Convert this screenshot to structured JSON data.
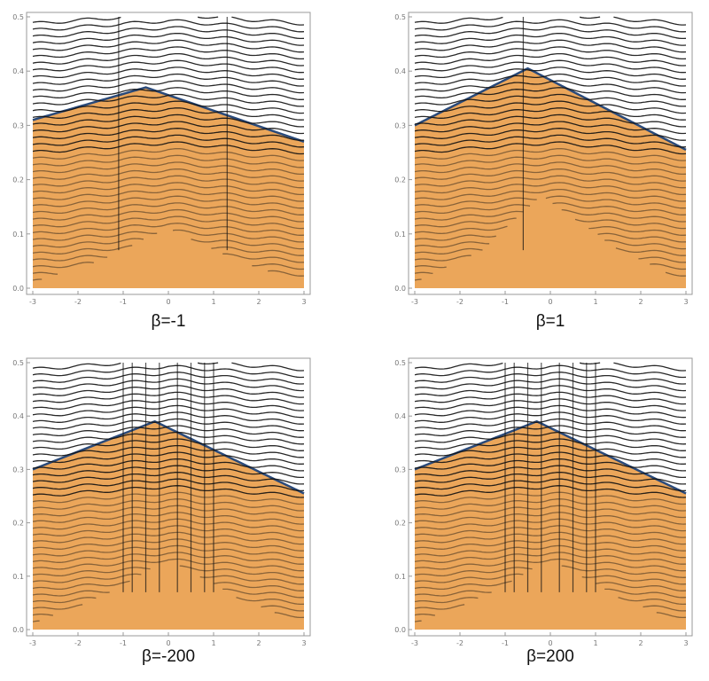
{
  "chart_data": [
    {
      "type": "contour",
      "label": "β=-1",
      "xlim": [
        -3,
        3
      ],
      "ylim": [
        0,
        0.5
      ],
      "xticks": [
        "-3",
        "-2",
        "-1",
        "0",
        "1",
        "2",
        "3"
      ],
      "yticks": [
        "0.0",
        "0.1",
        "0.2",
        "0.3",
        "0.4",
        "0.5"
      ],
      "boundary": [
        [
          -3,
          0.31
        ],
        [
          -0.5,
          0.37
        ],
        [
          3,
          0.27
        ]
      ],
      "inner_region": [
        [
          -3,
          0.01
        ],
        [
          -1.5,
          0.05
        ],
        [
          0,
          0.11
        ],
        [
          1.5,
          0.05
        ],
        [
          3,
          0.01
        ]
      ],
      "vertical_lines": [
        -1.1,
        1.3
      ]
    },
    {
      "type": "contour",
      "label": "β=1",
      "xlim": [
        -3,
        3
      ],
      "ylim": [
        0,
        0.5
      ],
      "xticks": [
        "-3",
        "-2",
        "-1",
        "0",
        "1",
        "2",
        "3"
      ],
      "yticks": [
        "0.0",
        "0.1",
        "0.2",
        "0.3",
        "0.4",
        "0.5"
      ],
      "boundary": [
        [
          -3,
          0.3
        ],
        [
          -0.5,
          0.405
        ],
        [
          3,
          0.255
        ]
      ],
      "inner_region": [
        [
          -3,
          0.01
        ],
        [
          -1.5,
          0.07
        ],
        [
          -0.2,
          0.17
        ],
        [
          1.5,
          0.07
        ],
        [
          3,
          0.01
        ]
      ],
      "vertical_lines": [
        -0.6
      ]
    },
    {
      "type": "contour",
      "label": "β=-200",
      "xlim": [
        -3,
        3
      ],
      "ylim": [
        0,
        0.5
      ],
      "xticks": [
        "-3",
        "-2",
        "-1",
        "0",
        "1",
        "2",
        "3"
      ],
      "yticks": [
        "0.0",
        "0.1",
        "0.2",
        "0.3",
        "0.4",
        "0.5"
      ],
      "boundary": [
        [
          -3,
          0.3
        ],
        [
          -0.3,
          0.39
        ],
        [
          3,
          0.255
        ]
      ],
      "inner_region": [
        [
          -3,
          0.01
        ],
        [
          -1.5,
          0.06
        ],
        [
          0,
          0.13
        ],
        [
          1.5,
          0.06
        ],
        [
          3,
          0.01
        ]
      ],
      "vertical_lines": [
        -1,
        -0.8,
        -0.5,
        -0.2,
        0.2,
        0.5,
        0.8,
        1.0
      ]
    },
    {
      "type": "contour",
      "label": "β=200",
      "xlim": [
        -3,
        3
      ],
      "ylim": [
        0,
        0.5
      ],
      "xticks": [
        "-3",
        "-2",
        "-1",
        "0",
        "1",
        "2",
        "3"
      ],
      "yticks": [
        "0.0",
        "0.1",
        "0.2",
        "0.3",
        "0.4",
        "0.5"
      ],
      "boundary": [
        [
          -3,
          0.3
        ],
        [
          -0.3,
          0.39
        ],
        [
          3,
          0.255
        ]
      ],
      "inner_region": [
        [
          -3,
          0.01
        ],
        [
          -1.5,
          0.06
        ],
        [
          0,
          0.13
        ],
        [
          1.5,
          0.06
        ],
        [
          3,
          0.01
        ]
      ],
      "vertical_lines": [
        -1,
        -0.8,
        -0.5,
        -0.2,
        0.2,
        0.5,
        0.8,
        1.0
      ]
    }
  ],
  "colors": {
    "fill": "#eba65a",
    "line": "#111111",
    "frame": "#999999",
    "edge": "#2a4a7a"
  }
}
